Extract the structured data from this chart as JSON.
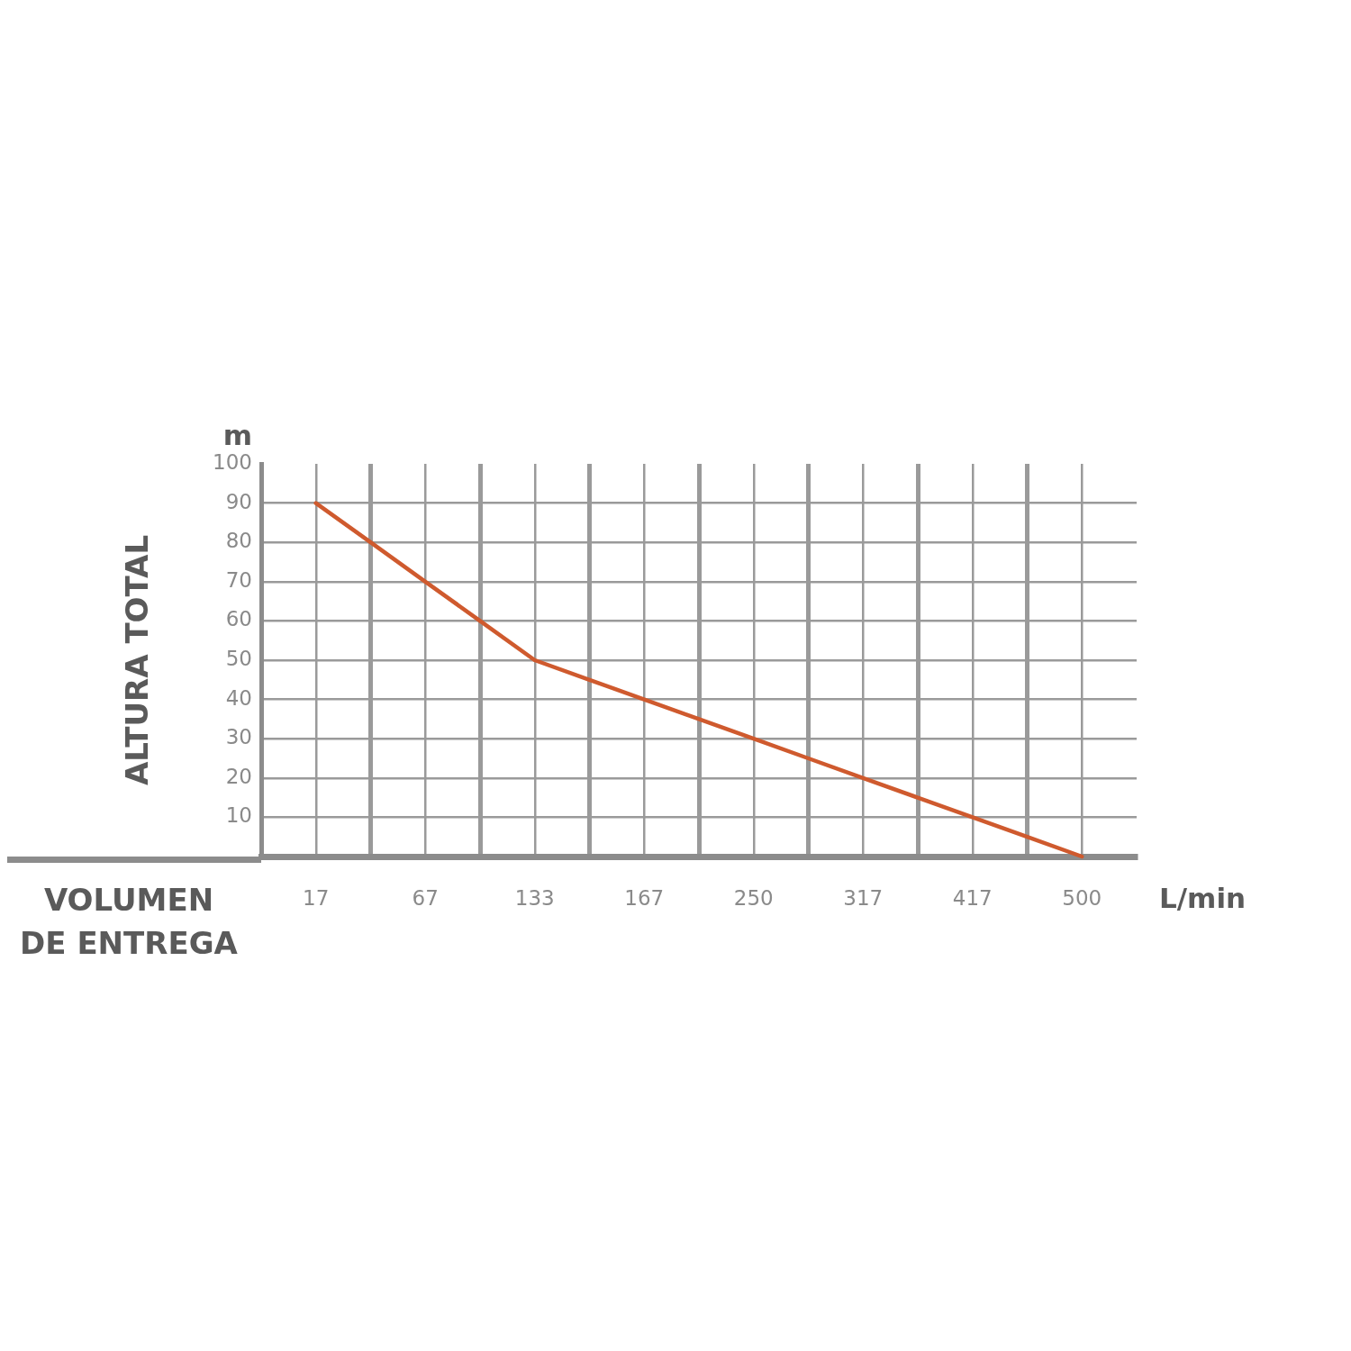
{
  "chart_data": {
    "type": "line",
    "xlabel": "VOLUMEN DE ENTREGA",
    "ylabel": "ALTURA TOTAL",
    "annotations": [
      "m",
      "L/min"
    ],
    "categories": [
      "17",
      null,
      "67",
      null,
      "133",
      null,
      "167",
      null,
      "250",
      null,
      "317",
      null,
      "417",
      null,
      "500"
    ],
    "values": [
      90,
      80,
      70,
      60,
      50,
      45,
      40,
      35,
      30,
      25,
      20,
      15,
      10,
      5,
      0
    ],
    "color": "#cf5a2e",
    "ylim": [
      0,
      100
    ],
    "yticks": [
      10,
      20,
      30,
      40,
      50,
      60,
      70,
      80,
      90,
      100
    ],
    "grid": true,
    "legend": false,
    "marker": "none",
    "line_style": "solid"
  }
}
